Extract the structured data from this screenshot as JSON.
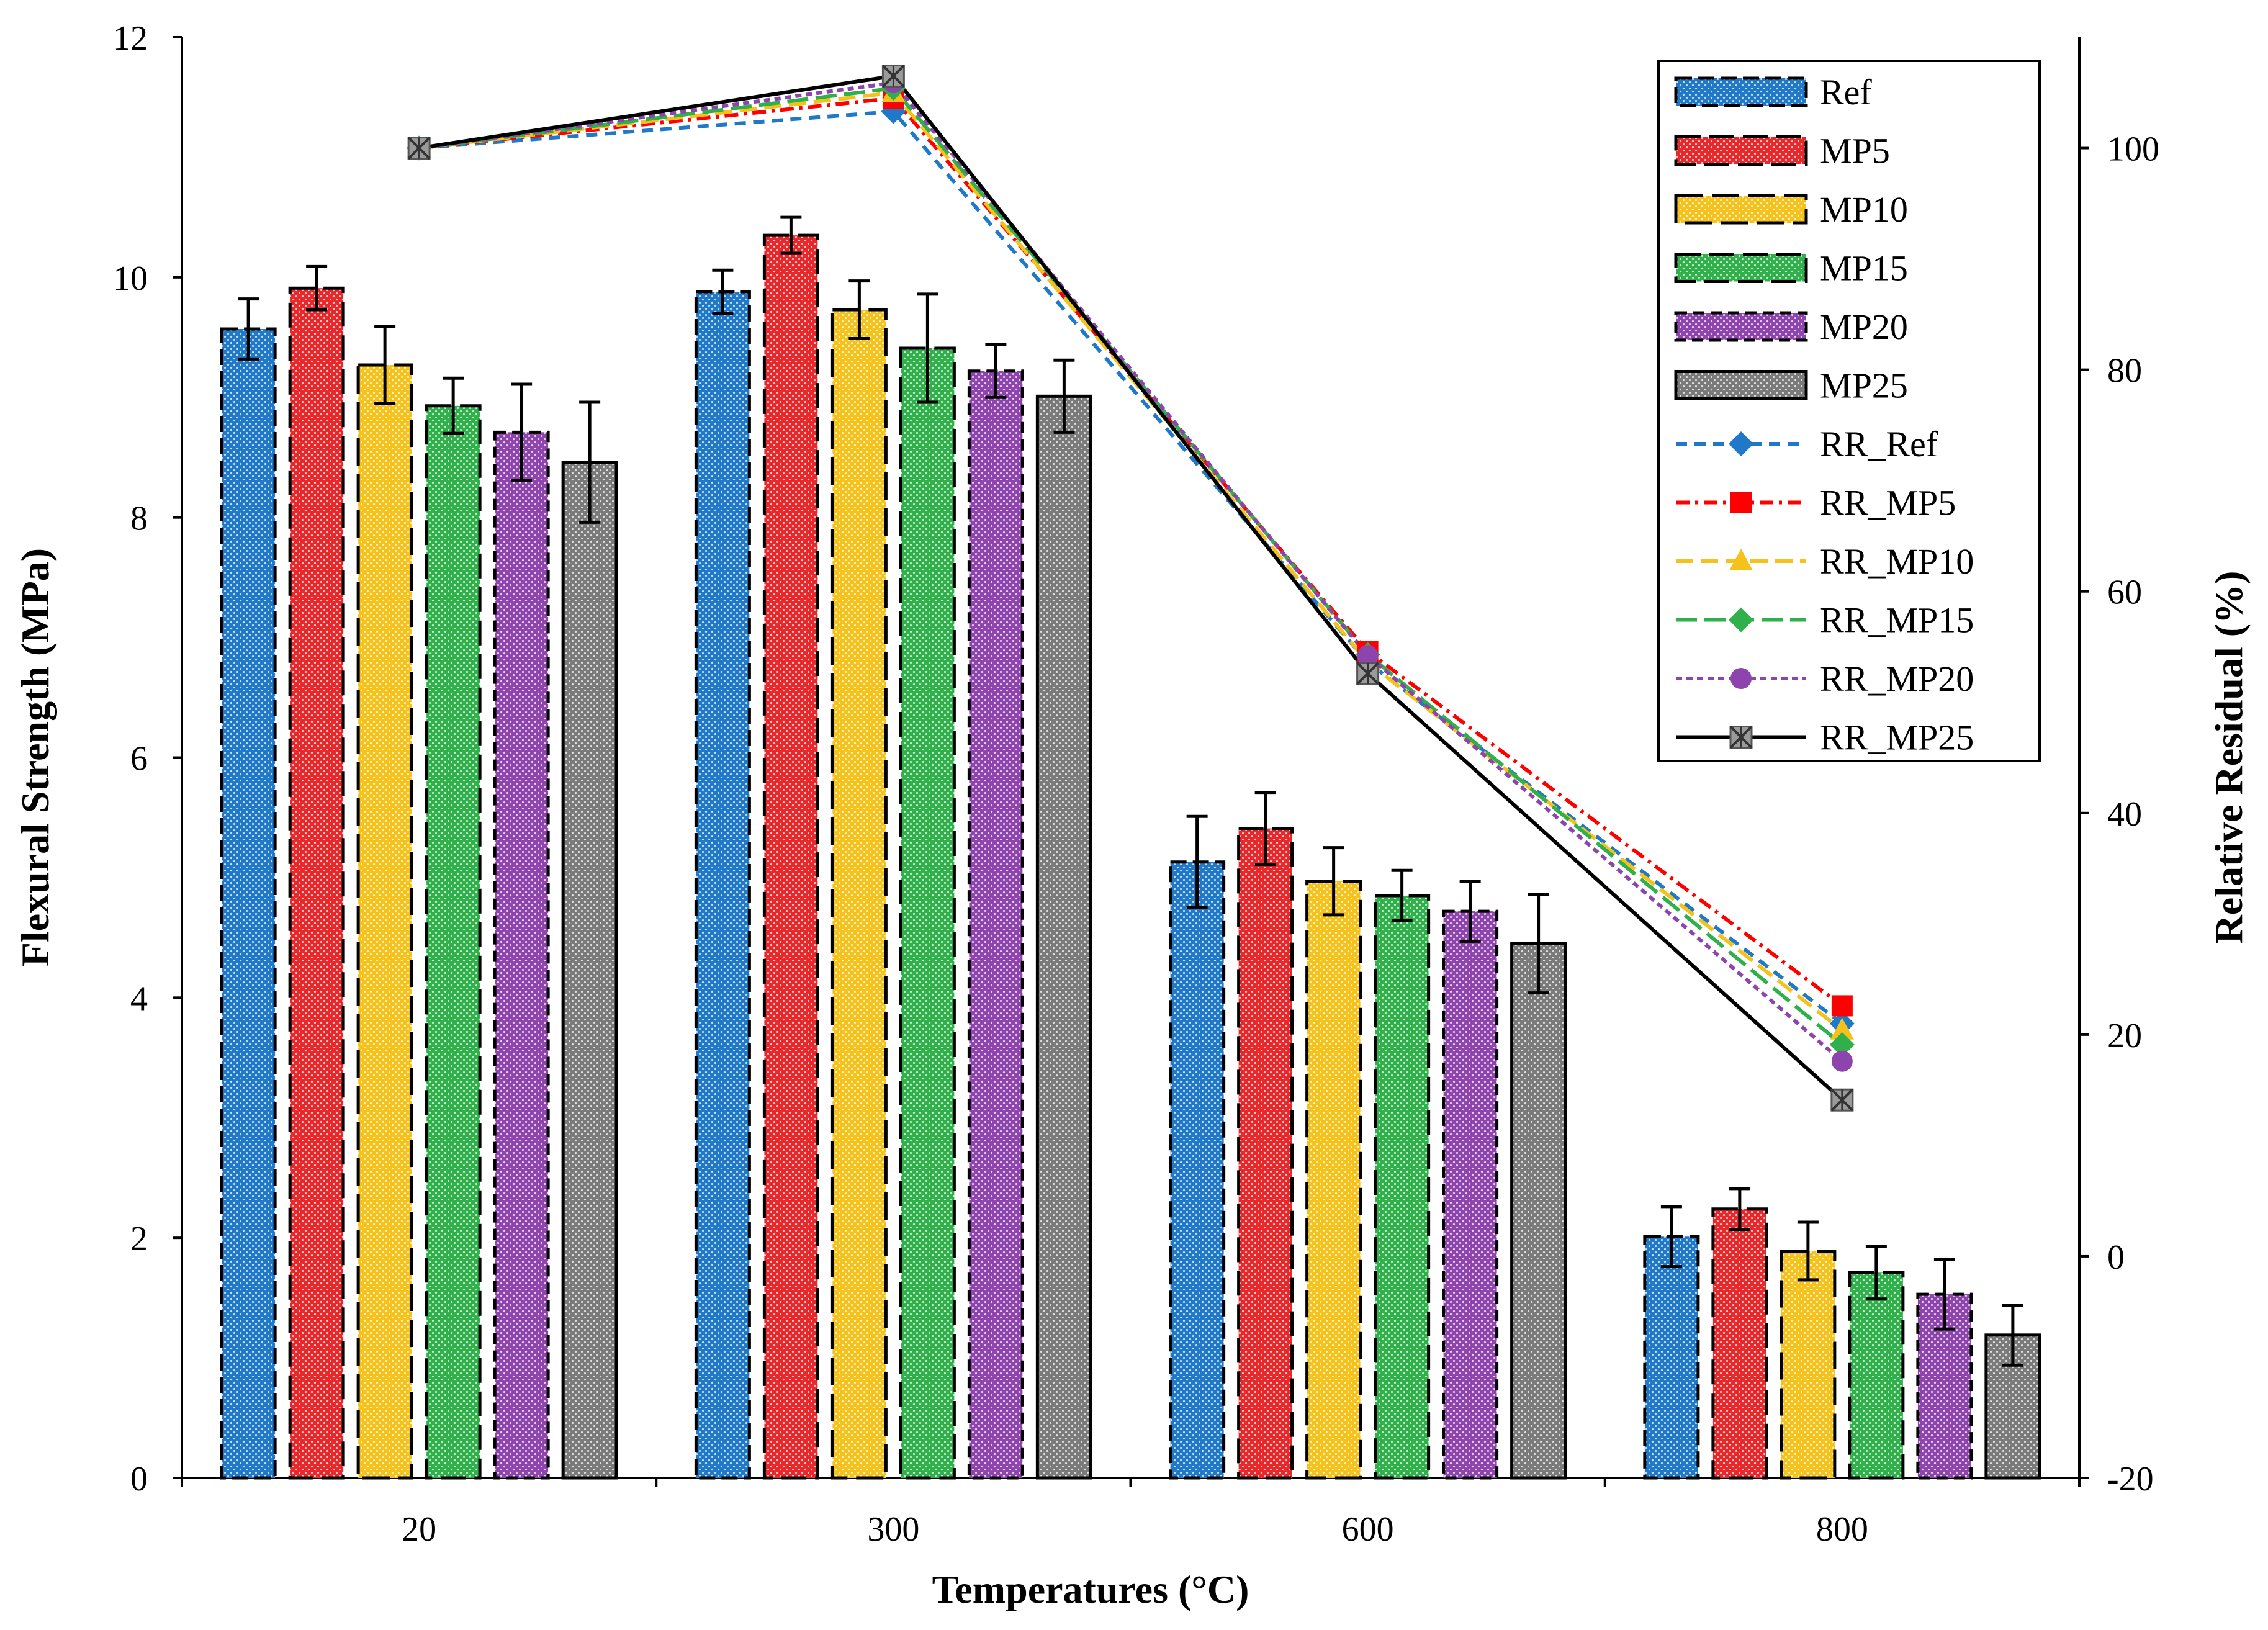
{
  "chart_data": {
    "type": "bar",
    "categories": [
      "20",
      "300",
      "600",
      "800"
    ],
    "xlabel": "Temperatures (°C)",
    "ylabel": "Flexural Strength (MPa)",
    "y2label": "Relative Residual (%)",
    "ylim": [
      0,
      12
    ],
    "y2lim": [
      -20,
      110
    ],
    "yticks": [
      "0",
      "2",
      "4",
      "6",
      "8",
      "10",
      "12"
    ],
    "y2ticks": [
      "-20",
      "0",
      "20",
      "40",
      "60",
      "80",
      "100"
    ],
    "legend_position": "top-right",
    "series": [
      {
        "name": "Ref",
        "color": "#1F78C8",
        "values": [
          9.57,
          9.88,
          5.13,
          2.01
        ],
        "errors": [
          0.25,
          0.18,
          0.38,
          0.25
        ]
      },
      {
        "name": "MP5",
        "color": "#E8272A",
        "values": [
          9.91,
          10.35,
          5.41,
          2.24
        ],
        "errors": [
          0.18,
          0.15,
          0.3,
          0.17
        ]
      },
      {
        "name": "MP10",
        "color": "#F5C21B",
        "values": [
          9.27,
          9.73,
          4.97,
          1.89
        ],
        "errors": [
          0.32,
          0.24,
          0.28,
          0.24
        ]
      },
      {
        "name": "MP15",
        "color": "#2FB04A",
        "values": [
          8.93,
          9.41,
          4.85,
          1.71
        ],
        "errors": [
          0.23,
          0.45,
          0.21,
          0.22
        ]
      },
      {
        "name": "MP20",
        "color": "#8E44AD",
        "values": [
          8.71,
          9.22,
          4.72,
          1.53
        ],
        "errors": [
          0.4,
          0.22,
          0.25,
          0.29
        ]
      },
      {
        "name": "MP25",
        "color": "#7A7A7A",
        "values": [
          8.46,
          9.01,
          4.45,
          1.19
        ],
        "errors": [
          0.5,
          0.3,
          0.41,
          0.25
        ]
      }
    ],
    "line_series": [
      {
        "name": "RR_Ref",
        "color": "#1F78C8",
        "marker": "diamond",
        "dash": "18 12",
        "values": [
          100,
          103.3,
          53.6,
          21.0
        ]
      },
      {
        "name": "RR_MP5",
        "color": "#FF0000",
        "marker": "square",
        "dash": "22 9 5 9",
        "values": [
          100,
          104.5,
          54.6,
          22.6
        ]
      },
      {
        "name": "RR_MP10",
        "color": "#F5C21B",
        "marker": "triangle",
        "dash": "28 12",
        "values": [
          100,
          105.0,
          53.6,
          20.4
        ]
      },
      {
        "name": "RR_MP15",
        "color": "#2FB04A",
        "marker": "diamond",
        "dash": "34 12",
        "values": [
          100,
          105.4,
          54.3,
          19.1
        ]
      },
      {
        "name": "RR_MP20",
        "color": "#8E44AD",
        "marker": "circle",
        "dash": "10 7",
        "values": [
          100,
          105.9,
          54.2,
          17.6
        ]
      },
      {
        "name": "RR_MP25",
        "color": "#000000",
        "marker": "xsquare",
        "dash": "",
        "values": [
          100,
          106.5,
          52.6,
          14.1
        ]
      }
    ]
  }
}
